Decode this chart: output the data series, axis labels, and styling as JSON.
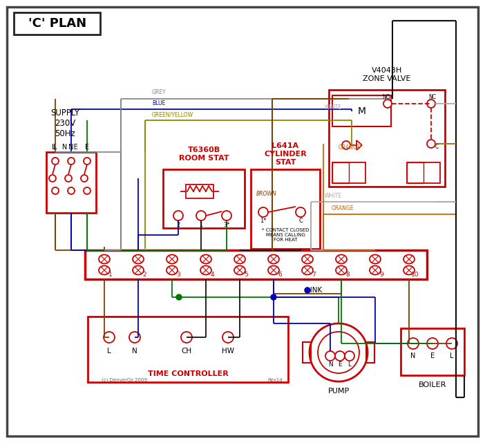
{
  "title": "'C' PLAN",
  "bg_color": "#ffffff",
  "RED": "#cc0000",
  "GREY": "#888888",
  "BLUE": "#0000bb",
  "GREEN": "#007700",
  "BROWN": "#7B3F00",
  "BLACK": "#111111",
  "ORANGE": "#cc6600",
  "WHITE_W": "#aaaaaa",
  "GY": "#888800",
  "supply_text": "SUPPLY\n230V\n50Hz",
  "zone_valve_label": "V4043H\nZONE VALVE",
  "room_stat_label": "T6360B\nROOM STAT",
  "cyl_stat_label": "L641A\nCYLINDER\nSTAT",
  "time_ctrl_label": "TIME CONTROLLER",
  "pump_label": "PUMP",
  "boiler_label": "BOILER",
  "link_label": "LINK",
  "copyright": "(c) DenverOz 2009",
  "rev": "Rev1d"
}
